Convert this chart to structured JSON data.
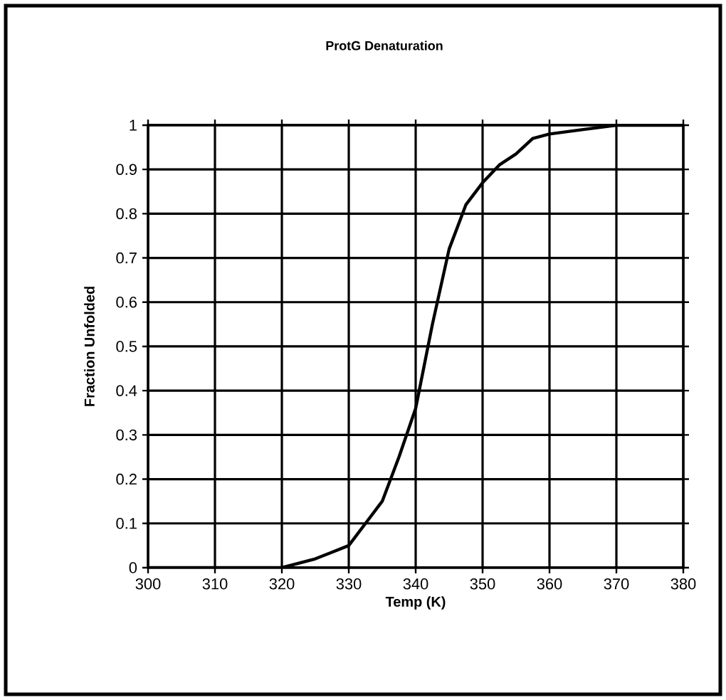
{
  "chart_data": {
    "type": "line",
    "title": "ProtG Denaturation",
    "xlabel": "Temp (K)",
    "ylabel": "Fraction Unfolded",
    "x": [
      300,
      310,
      320,
      322.5,
      325,
      327.5,
      330,
      332.5,
      335,
      337.5,
      340,
      342.5,
      345,
      347.5,
      350,
      352.5,
      355,
      357.5,
      360,
      365,
      370,
      380
    ],
    "series": [
      {
        "color": "#000000",
        "values": [
          0,
          0,
          0,
          0.01,
          0.02,
          0.035,
          0.05,
          0.1,
          0.15,
          0.25,
          0.36,
          0.55,
          0.72,
          0.82,
          0.87,
          0.91,
          0.935,
          0.97,
          0.98,
          0.99,
          1,
          1
        ]
      }
    ],
    "xlim": [
      300,
      380
    ],
    "xticks": [
      300,
      310,
      320,
      330,
      340,
      350,
      360,
      370,
      380
    ],
    "ylim": [
      0,
      1
    ],
    "yticks": [
      0,
      0.1,
      0.2,
      0.3,
      0.4,
      0.5,
      0.6,
      0.7,
      0.8,
      0.9,
      1
    ],
    "grid": true,
    "marker": "none",
    "line_style": "solid"
  }
}
